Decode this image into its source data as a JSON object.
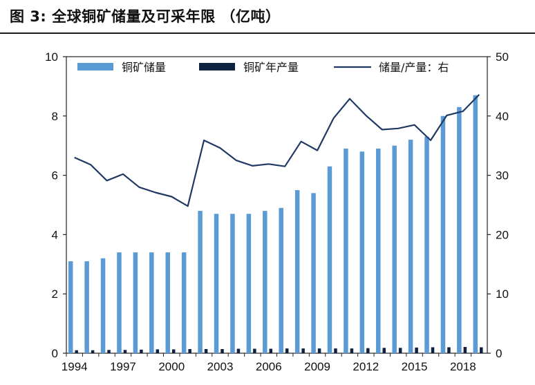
{
  "figure": {
    "title": "图 3:  全球铜矿储量及可采年限 （亿吨）"
  },
  "colors": {
    "reserves": "#5b9bd5",
    "production": "#0f2340",
    "ratio": "#1f3864",
    "axis": "#222222"
  },
  "chart_data": {
    "type": "bar",
    "title": "全球铜矿储量及可采年限 （亿吨）",
    "xlabel": "",
    "ylabel": "",
    "x": [
      1994,
      1995,
      1996,
      1997,
      1998,
      1999,
      2000,
      2001,
      2002,
      2003,
      2004,
      2005,
      2006,
      2007,
      2008,
      2009,
      2010,
      2011,
      2012,
      2013,
      2014,
      2015,
      2016,
      2017,
      2018,
      2019
    ],
    "x_tick_labels": [
      "1994",
      "1997",
      "2000",
      "2003",
      "2006",
      "2009",
      "2012",
      "2015",
      "2018"
    ],
    "ylim_left": [
      0,
      10
    ],
    "yticks_left": [
      "0",
      "2",
      "4",
      "6",
      "8",
      "10"
    ],
    "ylim_right": [
      0,
      50
    ],
    "yticks_right": [
      "0",
      "10",
      "20",
      "30",
      "40",
      "50"
    ],
    "grid": false,
    "legend_position": "top",
    "series": [
      {
        "name": "铜矿储量",
        "type": "bar",
        "axis": "left",
        "values": [
          3.1,
          3.1,
          3.2,
          3.4,
          3.4,
          3.4,
          3.4,
          3.4,
          4.8,
          4.7,
          4.7,
          4.7,
          4.8,
          4.9,
          5.5,
          5.4,
          6.3,
          6.9,
          6.8,
          6.9,
          7.0,
          7.2,
          7.3,
          8.0,
          8.3,
          8.7
        ]
      },
      {
        "name": "铜矿年产量",
        "type": "bar",
        "axis": "left",
        "values": [
          0.1,
          0.1,
          0.11,
          0.11,
          0.12,
          0.13,
          0.13,
          0.14,
          0.14,
          0.14,
          0.15,
          0.15,
          0.15,
          0.16,
          0.16,
          0.16,
          0.16,
          0.16,
          0.17,
          0.18,
          0.18,
          0.19,
          0.2,
          0.2,
          0.21,
          0.2
        ]
      },
      {
        "name": "储量/产量：右",
        "type": "line",
        "axis": "right",
        "values": [
          33.0,
          31.8,
          29.1,
          30.2,
          28.0,
          27.1,
          26.4,
          24.8,
          35.9,
          34.6,
          32.5,
          31.6,
          31.9,
          31.5,
          35.7,
          34.2,
          39.6,
          42.9,
          40.1,
          37.7,
          37.9,
          38.5,
          35.9,
          40.1,
          40.8,
          43.6
        ]
      }
    ]
  }
}
